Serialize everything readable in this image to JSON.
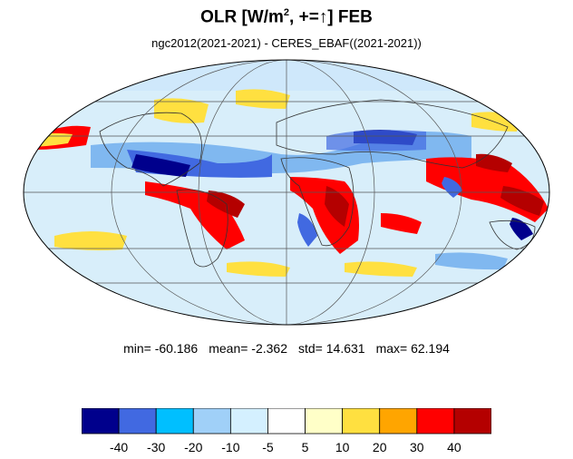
{
  "title": {
    "main": "OLR [W/m",
    "sup": "2",
    "rest": ", +=",
    "arrow": "↑",
    "month": "] FEB"
  },
  "subtitle": "ngc2012(2021-2021) - CERES_EBAF((2021-2021))",
  "stats": {
    "min": "min= -60.186",
    "mean": "mean= -2.362",
    "std": "std= 14.631",
    "max": "max= 62.194"
  },
  "colorbar": {
    "colors": [
      "#00008c",
      "#4169e1",
      "#00bfff",
      "#a0d0f8",
      "#d4f0ff",
      "#ffffff",
      "#ffffc8",
      "#ffe040",
      "#ffa500",
      "#ff0000",
      "#b40000"
    ],
    "tick_labels": [
      "-40",
      "-30",
      "-20",
      "-10",
      "-5",
      "5",
      "10",
      "20",
      "30",
      "40"
    ]
  },
  "map": {
    "projection": "mollweide",
    "grid": "on"
  }
}
